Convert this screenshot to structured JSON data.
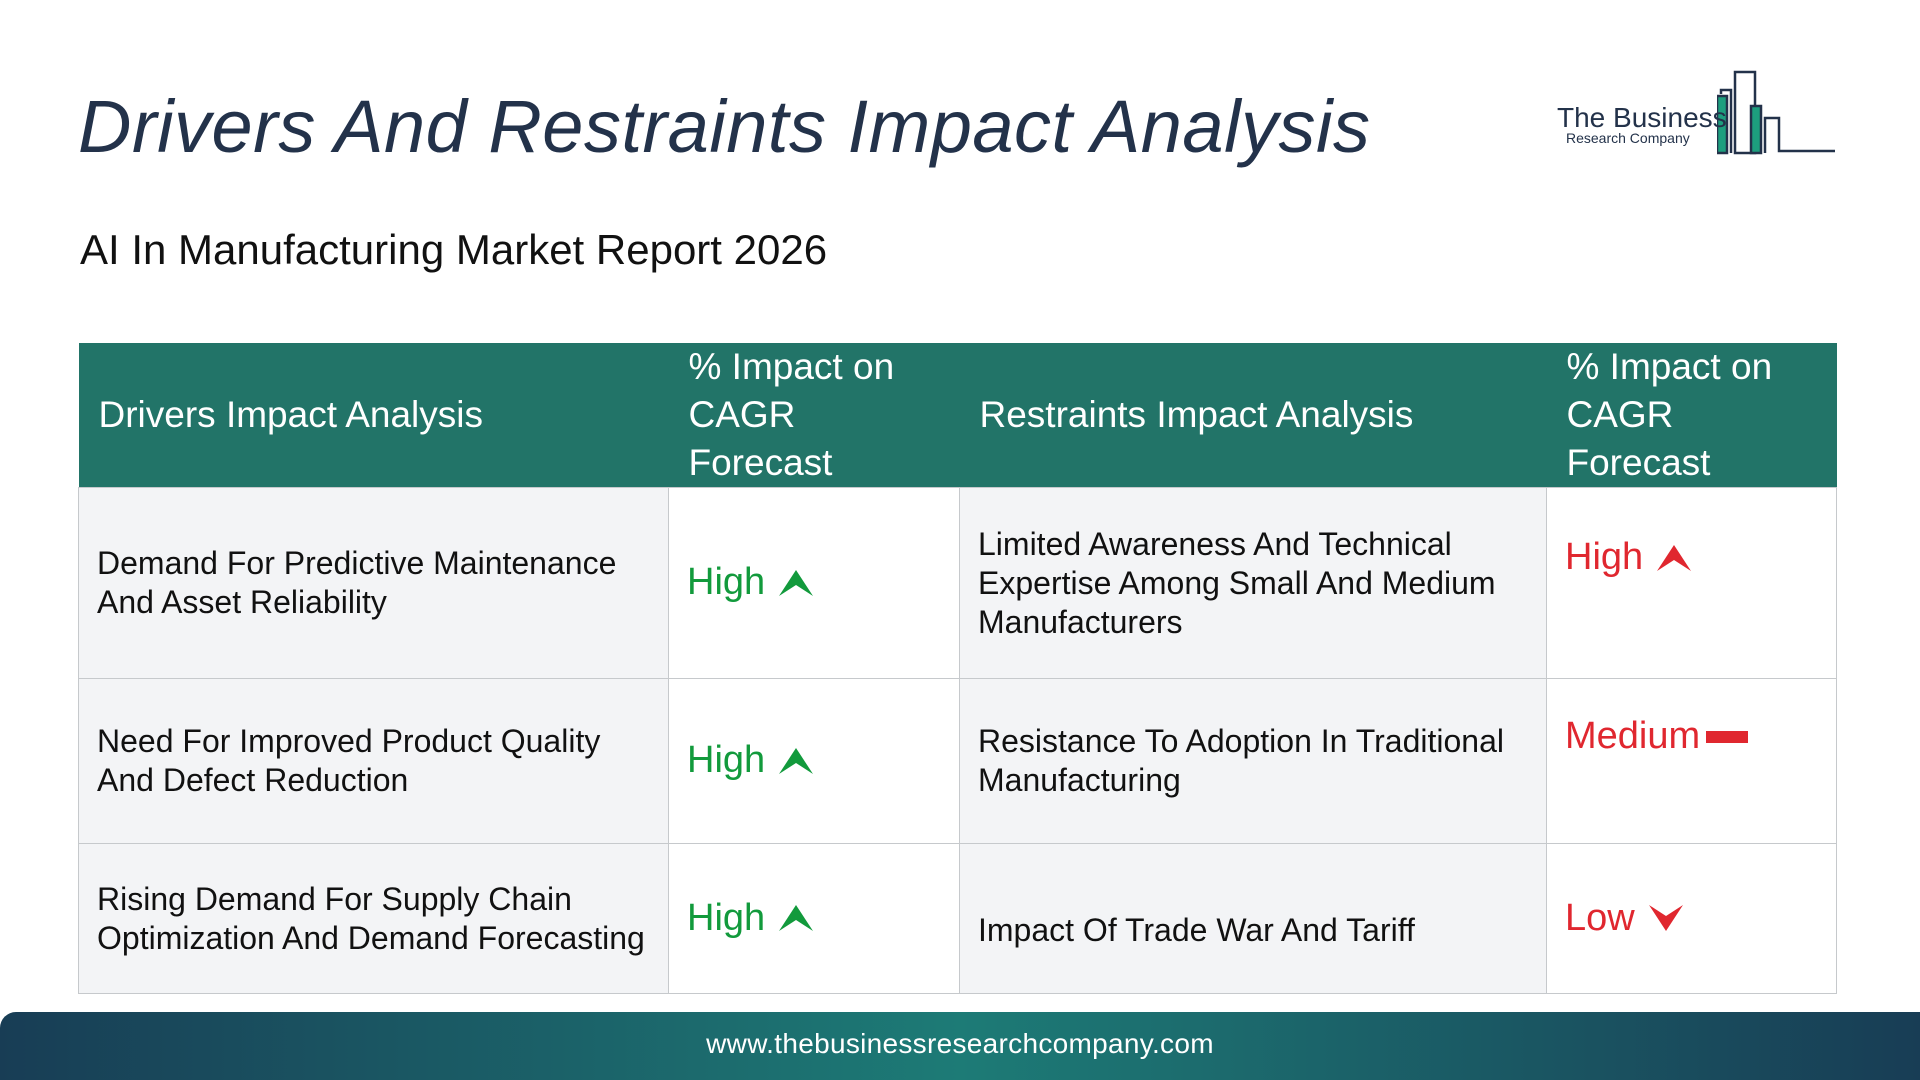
{
  "title": "Drivers And Restraints Impact Analysis",
  "subtitle": "AI In Manufacturing Market Report 2026",
  "logo": {
    "name": "The Business",
    "sub": "Research Company"
  },
  "table": {
    "headers": {
      "drivers": "Drivers Impact Analysis",
      "driver_impact_line1": "% Impact on",
      "driver_impact_line2": "CAGR Forecast",
      "restraints": "Restraints Impact Analysis",
      "restraint_impact_line1": "% Impact on",
      "restraint_impact_line2": "CAGR Forecast"
    },
    "rows": [
      {
        "driver": "Demand For Predictive Maintenance And Asset Reliability",
        "driver_impact": "High",
        "driver_icon": "arrow-up-icon",
        "restraint": "Limited Awareness And Technical Expertise Among Small And Medium Manufacturers",
        "restraint_impact": "High",
        "restraint_icon": "arrow-up-icon"
      },
      {
        "driver": "Need For Improved Product Quality And Defect Reduction",
        "driver_impact": "High",
        "driver_icon": "arrow-up-icon",
        "restraint": "Resistance To Adoption In Traditional Manufacturing",
        "restraint_impact": "Medium",
        "restraint_icon": "dash-icon"
      },
      {
        "driver": "Rising Demand For Supply Chain Optimization And Demand Forecasting",
        "driver_impact": "High",
        "driver_icon": "arrow-up-icon",
        "restraint": "Impact Of Trade War And Tariff",
        "restraint_impact": "Low",
        "restraint_icon": "arrow-down-icon"
      }
    ]
  },
  "colors": {
    "header_bg": "#227468",
    "driver_impact": "#129a3c",
    "restraint_impact": "#e0272f",
    "title": "#23324a"
  },
  "footer": {
    "url": "www.thebusinessresearchcompany.com"
  }
}
